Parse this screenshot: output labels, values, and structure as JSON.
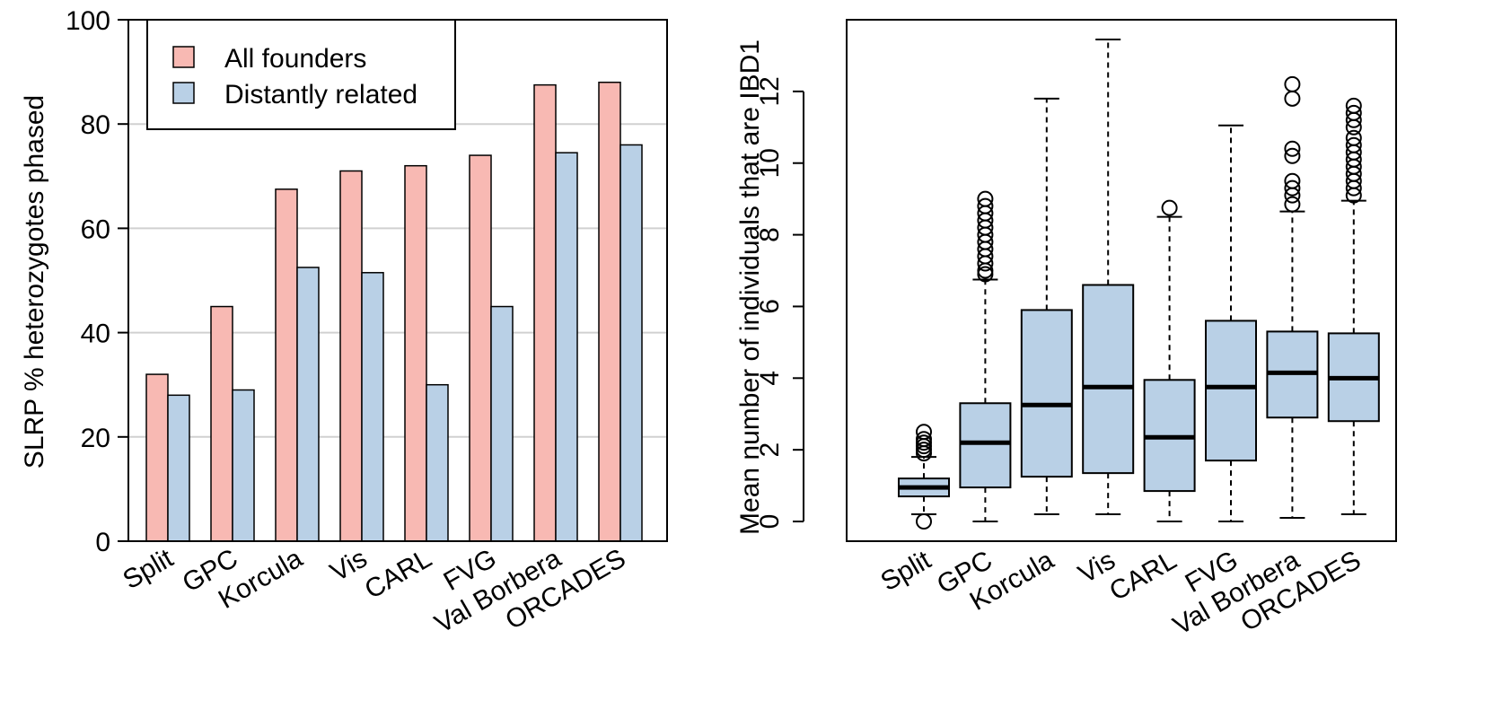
{
  "chart_data": [
    {
      "type": "bar",
      "categories": [
        "Split",
        "GPC",
        "Korcula",
        "Vis",
        "CARL",
        "FVG",
        "Val Borbera",
        "ORCADES"
      ],
      "series": [
        {
          "name": "All founders",
          "values": [
            32,
            45,
            67.5,
            71,
            72,
            74,
            87.5,
            88
          ],
          "color": "#f8b9b3"
        },
        {
          "name": "Distantly related",
          "values": [
            28,
            29,
            52.5,
            51.5,
            30,
            45,
            74.5,
            76
          ],
          "color": "#b9d0e6"
        }
      ],
      "ylabel": "SLRP % heterozygotes phased",
      "ylim": [
        0,
        100
      ],
      "yticks": [
        "0",
        "20",
        "40",
        "60",
        "80",
        "100"
      ],
      "grid": "horizontal",
      "legend": "top-left"
    },
    {
      "type": "boxplot",
      "categories": [
        "Split",
        "GPC",
        "Korcula",
        "Vis",
        "CARL",
        "FVG",
        "Val Borbera",
        "ORCADES"
      ],
      "boxes": [
        {
          "whisker_low": 0.2,
          "q1": 0.7,
          "median": 0.95,
          "q3": 1.2,
          "whisker_high": 1.8,
          "outliers": [
            0.0,
            1.9,
            2.0,
            2.1,
            2.2,
            2.3,
            2.5
          ]
        },
        {
          "whisker_low": 0.0,
          "q1": 0.95,
          "median": 2.2,
          "q3": 3.3,
          "whisker_high": 6.75,
          "outliers": [
            6.9,
            7.0,
            7.2,
            7.4,
            7.6,
            7.8,
            8.0,
            8.2,
            8.4,
            8.6,
            8.8,
            9.0
          ]
        },
        {
          "whisker_low": 0.2,
          "q1": 1.25,
          "median": 3.25,
          "q3": 5.9,
          "whisker_high": 11.8,
          "outliers": []
        },
        {
          "whisker_low": 0.2,
          "q1": 1.35,
          "median": 3.75,
          "q3": 6.6,
          "whisker_high": 13.45,
          "outliers": []
        },
        {
          "whisker_low": 0.0,
          "q1": 0.85,
          "median": 2.35,
          "q3": 3.95,
          "whisker_high": 8.5,
          "outliers": [
            8.75
          ]
        },
        {
          "whisker_low": 0.0,
          "q1": 1.7,
          "median": 3.75,
          "q3": 5.6,
          "whisker_high": 11.05,
          "outliers": []
        },
        {
          "whisker_low": 0.1,
          "q1": 2.9,
          "median": 4.15,
          "q3": 5.3,
          "whisker_high": 8.65,
          "outliers": [
            8.85,
            9.1,
            9.3,
            9.5,
            10.2,
            10.4,
            11.8,
            12.2
          ]
        },
        {
          "whisker_low": 0.2,
          "q1": 2.8,
          "median": 4.0,
          "q3": 5.25,
          "whisker_high": 8.95,
          "outliers": [
            9.1,
            9.3,
            9.5,
            9.7,
            9.9,
            10.1,
            10.3,
            10.5,
            10.7,
            11.0,
            11.2,
            11.4,
            11.6
          ]
        }
      ],
      "color": "#b9d0e6",
      "ylabel": "Mean number of individuals that are IBD1",
      "yticks": [
        "0",
        "2",
        "4",
        "6",
        "8",
        "10",
        "12"
      ],
      "ylim": [
        -0.55,
        14
      ]
    }
  ]
}
